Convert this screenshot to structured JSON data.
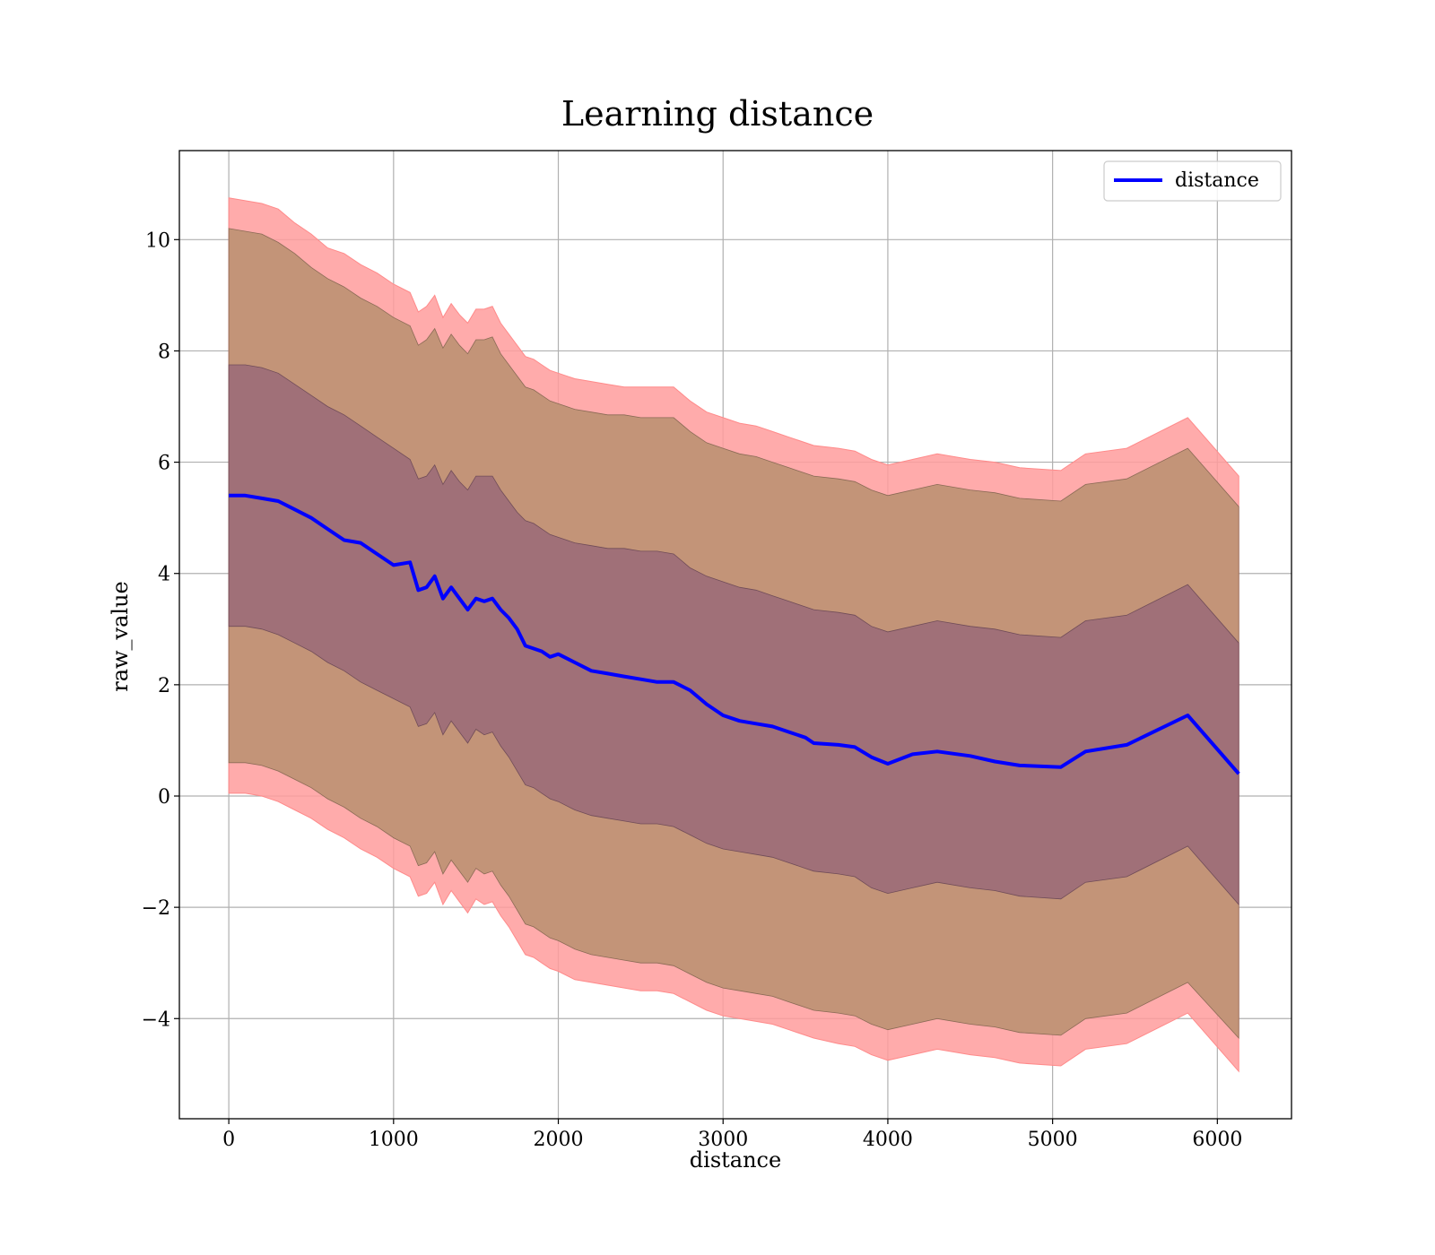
{
  "chart_data": {
    "type": "area",
    "title": "Learning distance",
    "xlabel": "distance",
    "ylabel": "raw_value",
    "xlim": [
      -300,
      6450
    ],
    "ylim": [
      -5.8,
      11.6
    ],
    "xticks": [
      0,
      1000,
      2000,
      3000,
      4000,
      5000,
      6000
    ],
    "xtick_labels": [
      "0",
      "1000",
      "2000",
      "3000",
      "4000",
      "5000",
      "6000"
    ],
    "yticks": [
      -4,
      -2,
      0,
      2,
      4,
      6,
      8,
      10
    ],
    "ytick_labels": [
      "−4",
      "−2",
      "0",
      "2",
      "4",
      "6",
      "8",
      "10"
    ],
    "grid": true,
    "legend_position": "top-right",
    "legend": [
      "distance"
    ],
    "colors": {
      "line": "#0000ff",
      "band_outer": "#ff9c9c",
      "band_middle": "#c39478",
      "band_inner": "#a07078",
      "grid": "#b0b0b0"
    },
    "x": [
      0,
      100,
      200,
      300,
      400,
      500,
      600,
      700,
      800,
      900,
      1000,
      1100,
      1150,
      1200,
      1250,
      1300,
      1350,
      1400,
      1450,
      1500,
      1550,
      1600,
      1650,
      1700,
      1750,
      1800,
      1850,
      1900,
      1950,
      2000,
      2100,
      2200,
      2300,
      2400,
      2500,
      2600,
      2700,
      2800,
      2900,
      3000,
      3100,
      3200,
      3300,
      3400,
      3500,
      3550,
      3700,
      3800,
      3900,
      4000,
      4150,
      4300,
      4500,
      4650,
      4800,
      5050,
      5200,
      5450,
      5820,
      6130
    ],
    "series": [
      {
        "name": "distance",
        "role": "mean",
        "values": [
          5.4,
          5.4,
          5.35,
          5.3,
          5.15,
          5.0,
          4.8,
          4.6,
          4.55,
          4.35,
          4.15,
          4.2,
          3.7,
          3.75,
          3.95,
          3.55,
          3.75,
          3.55,
          3.35,
          3.55,
          3.5,
          3.55,
          3.35,
          3.2,
          3.0,
          2.7,
          2.65,
          2.6,
          2.5,
          2.55,
          2.4,
          2.25,
          2.2,
          2.15,
          2.1,
          2.05,
          2.05,
          1.9,
          1.65,
          1.45,
          1.35,
          1.3,
          1.25,
          1.15,
          1.05,
          0.95,
          0.92,
          0.88,
          0.7,
          0.58,
          0.75,
          0.8,
          0.72,
          0.62,
          0.55,
          0.52,
          0.8,
          0.92,
          1.45,
          0.4
        ]
      },
      {
        "name": "",
        "role": "band_outer_upper",
        "values": [
          10.75,
          10.7,
          10.65,
          10.55,
          10.3,
          10.1,
          9.85,
          9.75,
          9.55,
          9.4,
          9.2,
          9.05,
          8.7,
          8.8,
          9.0,
          8.6,
          8.85,
          8.65,
          8.5,
          8.75,
          8.75,
          8.8,
          8.5,
          8.3,
          8.1,
          7.9,
          7.85,
          7.75,
          7.65,
          7.6,
          7.5,
          7.45,
          7.4,
          7.35,
          7.35,
          7.35,
          7.35,
          7.1,
          6.9,
          6.8,
          6.7,
          6.65,
          6.55,
          6.45,
          6.35,
          6.3,
          6.25,
          6.2,
          6.05,
          5.95,
          6.05,
          6.15,
          6.05,
          6.0,
          5.9,
          5.85,
          6.15,
          6.25,
          6.8,
          5.75
        ]
      },
      {
        "name": "",
        "role": "band_middle_upper",
        "values": [
          10.2,
          10.15,
          10.1,
          9.95,
          9.75,
          9.5,
          9.3,
          9.15,
          8.95,
          8.8,
          8.6,
          8.45,
          8.1,
          8.2,
          8.4,
          8.05,
          8.3,
          8.1,
          7.95,
          8.2,
          8.2,
          8.25,
          7.95,
          7.75,
          7.55,
          7.35,
          7.3,
          7.2,
          7.1,
          7.05,
          6.95,
          6.9,
          6.85,
          6.85,
          6.8,
          6.8,
          6.8,
          6.55,
          6.35,
          6.25,
          6.15,
          6.1,
          6.0,
          5.9,
          5.8,
          5.75,
          5.7,
          5.65,
          5.5,
          5.4,
          5.5,
          5.6,
          5.5,
          5.45,
          5.35,
          5.3,
          5.6,
          5.7,
          6.25,
          5.2
        ]
      },
      {
        "name": "",
        "role": "band_inner_upper",
        "values": [
          7.75,
          7.75,
          7.7,
          7.6,
          7.4,
          7.2,
          7.0,
          6.85,
          6.65,
          6.45,
          6.25,
          6.05,
          5.7,
          5.75,
          5.95,
          5.6,
          5.85,
          5.65,
          5.5,
          5.75,
          5.75,
          5.75,
          5.5,
          5.3,
          5.1,
          4.95,
          4.9,
          4.8,
          4.7,
          4.65,
          4.55,
          4.5,
          4.45,
          4.45,
          4.4,
          4.4,
          4.35,
          4.1,
          3.95,
          3.85,
          3.75,
          3.7,
          3.6,
          3.5,
          3.4,
          3.35,
          3.3,
          3.25,
          3.05,
          2.95,
          3.05,
          3.15,
          3.05,
          3.0,
          2.9,
          2.85,
          3.15,
          3.25,
          3.8,
          2.75
        ]
      },
      {
        "name": "",
        "role": "band_inner_lower",
        "values": [
          3.05,
          3.05,
          3.0,
          2.9,
          2.75,
          2.6,
          2.4,
          2.25,
          2.05,
          1.9,
          1.75,
          1.6,
          1.25,
          1.3,
          1.5,
          1.1,
          1.35,
          1.15,
          0.95,
          1.2,
          1.1,
          1.15,
          0.9,
          0.7,
          0.45,
          0.2,
          0.15,
          0.05,
          -0.05,
          -0.1,
          -0.25,
          -0.35,
          -0.4,
          -0.45,
          -0.5,
          -0.5,
          -0.55,
          -0.7,
          -0.85,
          -0.95,
          -1.0,
          -1.05,
          -1.1,
          -1.2,
          -1.3,
          -1.35,
          -1.4,
          -1.45,
          -1.65,
          -1.75,
          -1.65,
          -1.55,
          -1.65,
          -1.7,
          -1.8,
          -1.85,
          -1.55,
          -1.45,
          -0.9,
          -1.95
        ]
      },
      {
        "name": "",
        "role": "band_middle_lower",
        "values": [
          0.6,
          0.6,
          0.55,
          0.45,
          0.3,
          0.15,
          -0.05,
          -0.2,
          -0.4,
          -0.55,
          -0.75,
          -0.9,
          -1.25,
          -1.2,
          -1.0,
          -1.4,
          -1.15,
          -1.35,
          -1.55,
          -1.3,
          -1.4,
          -1.35,
          -1.6,
          -1.8,
          -2.05,
          -2.3,
          -2.35,
          -2.45,
          -2.55,
          -2.6,
          -2.75,
          -2.85,
          -2.9,
          -2.95,
          -3.0,
          -3.0,
          -3.05,
          -3.2,
          -3.35,
          -3.45,
          -3.5,
          -3.55,
          -3.6,
          -3.7,
          -3.8,
          -3.85,
          -3.9,
          -3.95,
          -4.1,
          -4.2,
          -4.1,
          -4.0,
          -4.1,
          -4.15,
          -4.25,
          -4.3,
          -4.0,
          -3.9,
          -3.35,
          -4.35
        ]
      },
      {
        "name": "",
        "role": "band_outer_lower",
        "values": [
          0.05,
          0.05,
          0.0,
          -0.1,
          -0.25,
          -0.4,
          -0.6,
          -0.75,
          -0.95,
          -1.1,
          -1.3,
          -1.45,
          -1.8,
          -1.75,
          -1.55,
          -1.95,
          -1.7,
          -1.9,
          -2.1,
          -1.85,
          -1.95,
          -1.9,
          -2.15,
          -2.35,
          -2.6,
          -2.85,
          -2.9,
          -3.0,
          -3.1,
          -3.15,
          -3.3,
          -3.35,
          -3.4,
          -3.45,
          -3.5,
          -3.5,
          -3.55,
          -3.7,
          -3.85,
          -3.95,
          -4.0,
          -4.05,
          -4.1,
          -4.2,
          -4.3,
          -4.35,
          -4.45,
          -4.5,
          -4.65,
          -4.75,
          -4.65,
          -4.55,
          -4.65,
          -4.7,
          -4.8,
          -4.85,
          -4.55,
          -4.45,
          -3.9,
          -4.95
        ]
      }
    ]
  }
}
